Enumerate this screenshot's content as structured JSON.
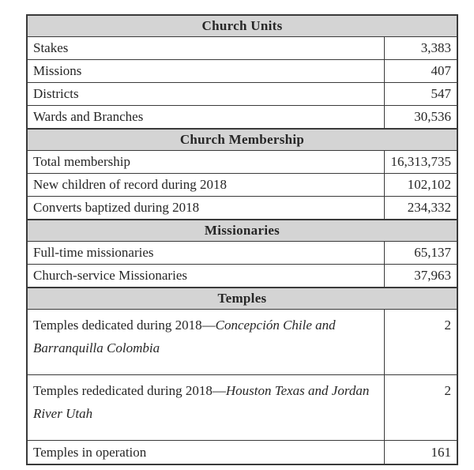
{
  "table": {
    "colors": {
      "section_header_bg": "#d4d4d4",
      "border": "#3a3a3a",
      "text": "#262626"
    },
    "sections": [
      {
        "header": "Church Units",
        "rows": [
          {
            "label": "Stakes",
            "value": "3,383"
          },
          {
            "label": "Missions",
            "value": "407"
          },
          {
            "label": "Districts",
            "value": "547"
          },
          {
            "label": "Wards and Branches",
            "value": "30,536"
          }
        ]
      },
      {
        "header": "Church Membership",
        "rows": [
          {
            "label": "Total membership",
            "value": "16,313,735"
          },
          {
            "label": "New children of record during 2018",
            "value": "102,102"
          },
          {
            "label": "Converts baptized during 2018",
            "value": "234,332"
          }
        ]
      },
      {
        "header": "Missionaries",
        "rows": [
          {
            "label": "Full-time missionaries",
            "value": "65,137"
          },
          {
            "label": "Church-service Missionaries",
            "value": "37,963"
          }
        ]
      },
      {
        "header": "Temples",
        "rows": [
          {
            "label_plain": "Temples dedicated during 2018—",
            "label_italic": "Concepción Chile and Barranquilla Colombia",
            "value": "2"
          },
          {
            "label_plain": "Temples rededicated during 2018—",
            "label_italic": "Houston Texas and Jordan River Utah",
            "value": "2"
          },
          {
            "label": "Temples in operation",
            "value": "161"
          }
        ]
      }
    ]
  }
}
